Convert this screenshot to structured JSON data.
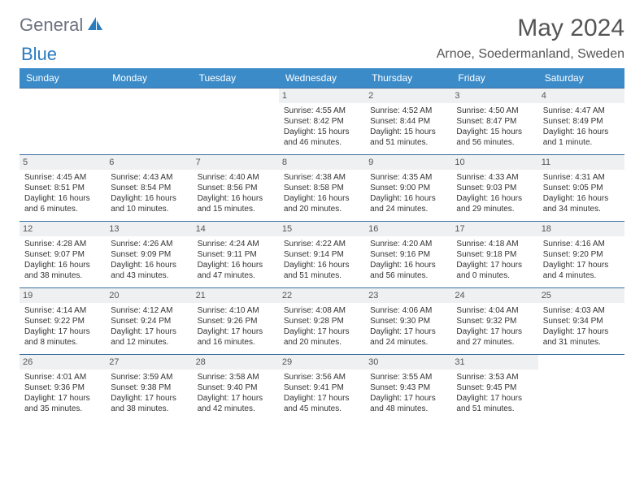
{
  "logo": {
    "part1": "General",
    "part2": "Blue"
  },
  "title": "May 2024",
  "location": "Arnoe, Soedermanland, Sweden",
  "colors": {
    "header_bg": "#3b8bc9",
    "header_text": "#ffffff",
    "row_border": "#3b6ea0",
    "daynum_bg": "#eef0f2",
    "logo_gray": "#6b7280",
    "logo_blue": "#2b7bbf"
  },
  "weekdays": [
    "Sunday",
    "Monday",
    "Tuesday",
    "Wednesday",
    "Thursday",
    "Friday",
    "Saturday"
  ],
  "weeks": [
    [
      null,
      null,
      null,
      {
        "d": "1",
        "sr": "Sunrise: 4:55 AM",
        "ss": "Sunset: 8:42 PM",
        "dl1": "Daylight: 15 hours",
        "dl2": "and 46 minutes."
      },
      {
        "d": "2",
        "sr": "Sunrise: 4:52 AM",
        "ss": "Sunset: 8:44 PM",
        "dl1": "Daylight: 15 hours",
        "dl2": "and 51 minutes."
      },
      {
        "d": "3",
        "sr": "Sunrise: 4:50 AM",
        "ss": "Sunset: 8:47 PM",
        "dl1": "Daylight: 15 hours",
        "dl2": "and 56 minutes."
      },
      {
        "d": "4",
        "sr": "Sunrise: 4:47 AM",
        "ss": "Sunset: 8:49 PM",
        "dl1": "Daylight: 16 hours",
        "dl2": "and 1 minute."
      }
    ],
    [
      {
        "d": "5",
        "sr": "Sunrise: 4:45 AM",
        "ss": "Sunset: 8:51 PM",
        "dl1": "Daylight: 16 hours",
        "dl2": "and 6 minutes."
      },
      {
        "d": "6",
        "sr": "Sunrise: 4:43 AM",
        "ss": "Sunset: 8:54 PM",
        "dl1": "Daylight: 16 hours",
        "dl2": "and 10 minutes."
      },
      {
        "d": "7",
        "sr": "Sunrise: 4:40 AM",
        "ss": "Sunset: 8:56 PM",
        "dl1": "Daylight: 16 hours",
        "dl2": "and 15 minutes."
      },
      {
        "d": "8",
        "sr": "Sunrise: 4:38 AM",
        "ss": "Sunset: 8:58 PM",
        "dl1": "Daylight: 16 hours",
        "dl2": "and 20 minutes."
      },
      {
        "d": "9",
        "sr": "Sunrise: 4:35 AM",
        "ss": "Sunset: 9:00 PM",
        "dl1": "Daylight: 16 hours",
        "dl2": "and 24 minutes."
      },
      {
        "d": "10",
        "sr": "Sunrise: 4:33 AM",
        "ss": "Sunset: 9:03 PM",
        "dl1": "Daylight: 16 hours",
        "dl2": "and 29 minutes."
      },
      {
        "d": "11",
        "sr": "Sunrise: 4:31 AM",
        "ss": "Sunset: 9:05 PM",
        "dl1": "Daylight: 16 hours",
        "dl2": "and 34 minutes."
      }
    ],
    [
      {
        "d": "12",
        "sr": "Sunrise: 4:28 AM",
        "ss": "Sunset: 9:07 PM",
        "dl1": "Daylight: 16 hours",
        "dl2": "and 38 minutes."
      },
      {
        "d": "13",
        "sr": "Sunrise: 4:26 AM",
        "ss": "Sunset: 9:09 PM",
        "dl1": "Daylight: 16 hours",
        "dl2": "and 43 minutes."
      },
      {
        "d": "14",
        "sr": "Sunrise: 4:24 AM",
        "ss": "Sunset: 9:11 PM",
        "dl1": "Daylight: 16 hours",
        "dl2": "and 47 minutes."
      },
      {
        "d": "15",
        "sr": "Sunrise: 4:22 AM",
        "ss": "Sunset: 9:14 PM",
        "dl1": "Daylight: 16 hours",
        "dl2": "and 51 minutes."
      },
      {
        "d": "16",
        "sr": "Sunrise: 4:20 AM",
        "ss": "Sunset: 9:16 PM",
        "dl1": "Daylight: 16 hours",
        "dl2": "and 56 minutes."
      },
      {
        "d": "17",
        "sr": "Sunrise: 4:18 AM",
        "ss": "Sunset: 9:18 PM",
        "dl1": "Daylight: 17 hours",
        "dl2": "and 0 minutes."
      },
      {
        "d": "18",
        "sr": "Sunrise: 4:16 AM",
        "ss": "Sunset: 9:20 PM",
        "dl1": "Daylight: 17 hours",
        "dl2": "and 4 minutes."
      }
    ],
    [
      {
        "d": "19",
        "sr": "Sunrise: 4:14 AM",
        "ss": "Sunset: 9:22 PM",
        "dl1": "Daylight: 17 hours",
        "dl2": "and 8 minutes."
      },
      {
        "d": "20",
        "sr": "Sunrise: 4:12 AM",
        "ss": "Sunset: 9:24 PM",
        "dl1": "Daylight: 17 hours",
        "dl2": "and 12 minutes."
      },
      {
        "d": "21",
        "sr": "Sunrise: 4:10 AM",
        "ss": "Sunset: 9:26 PM",
        "dl1": "Daylight: 17 hours",
        "dl2": "and 16 minutes."
      },
      {
        "d": "22",
        "sr": "Sunrise: 4:08 AM",
        "ss": "Sunset: 9:28 PM",
        "dl1": "Daylight: 17 hours",
        "dl2": "and 20 minutes."
      },
      {
        "d": "23",
        "sr": "Sunrise: 4:06 AM",
        "ss": "Sunset: 9:30 PM",
        "dl1": "Daylight: 17 hours",
        "dl2": "and 24 minutes."
      },
      {
        "d": "24",
        "sr": "Sunrise: 4:04 AM",
        "ss": "Sunset: 9:32 PM",
        "dl1": "Daylight: 17 hours",
        "dl2": "and 27 minutes."
      },
      {
        "d": "25",
        "sr": "Sunrise: 4:03 AM",
        "ss": "Sunset: 9:34 PM",
        "dl1": "Daylight: 17 hours",
        "dl2": "and 31 minutes."
      }
    ],
    [
      {
        "d": "26",
        "sr": "Sunrise: 4:01 AM",
        "ss": "Sunset: 9:36 PM",
        "dl1": "Daylight: 17 hours",
        "dl2": "and 35 minutes."
      },
      {
        "d": "27",
        "sr": "Sunrise: 3:59 AM",
        "ss": "Sunset: 9:38 PM",
        "dl1": "Daylight: 17 hours",
        "dl2": "and 38 minutes."
      },
      {
        "d": "28",
        "sr": "Sunrise: 3:58 AM",
        "ss": "Sunset: 9:40 PM",
        "dl1": "Daylight: 17 hours",
        "dl2": "and 42 minutes."
      },
      {
        "d": "29",
        "sr": "Sunrise: 3:56 AM",
        "ss": "Sunset: 9:41 PM",
        "dl1": "Daylight: 17 hours",
        "dl2": "and 45 minutes."
      },
      {
        "d": "30",
        "sr": "Sunrise: 3:55 AM",
        "ss": "Sunset: 9:43 PM",
        "dl1": "Daylight: 17 hours",
        "dl2": "and 48 minutes."
      },
      {
        "d": "31",
        "sr": "Sunrise: 3:53 AM",
        "ss": "Sunset: 9:45 PM",
        "dl1": "Daylight: 17 hours",
        "dl2": "and 51 minutes."
      },
      null
    ]
  ]
}
